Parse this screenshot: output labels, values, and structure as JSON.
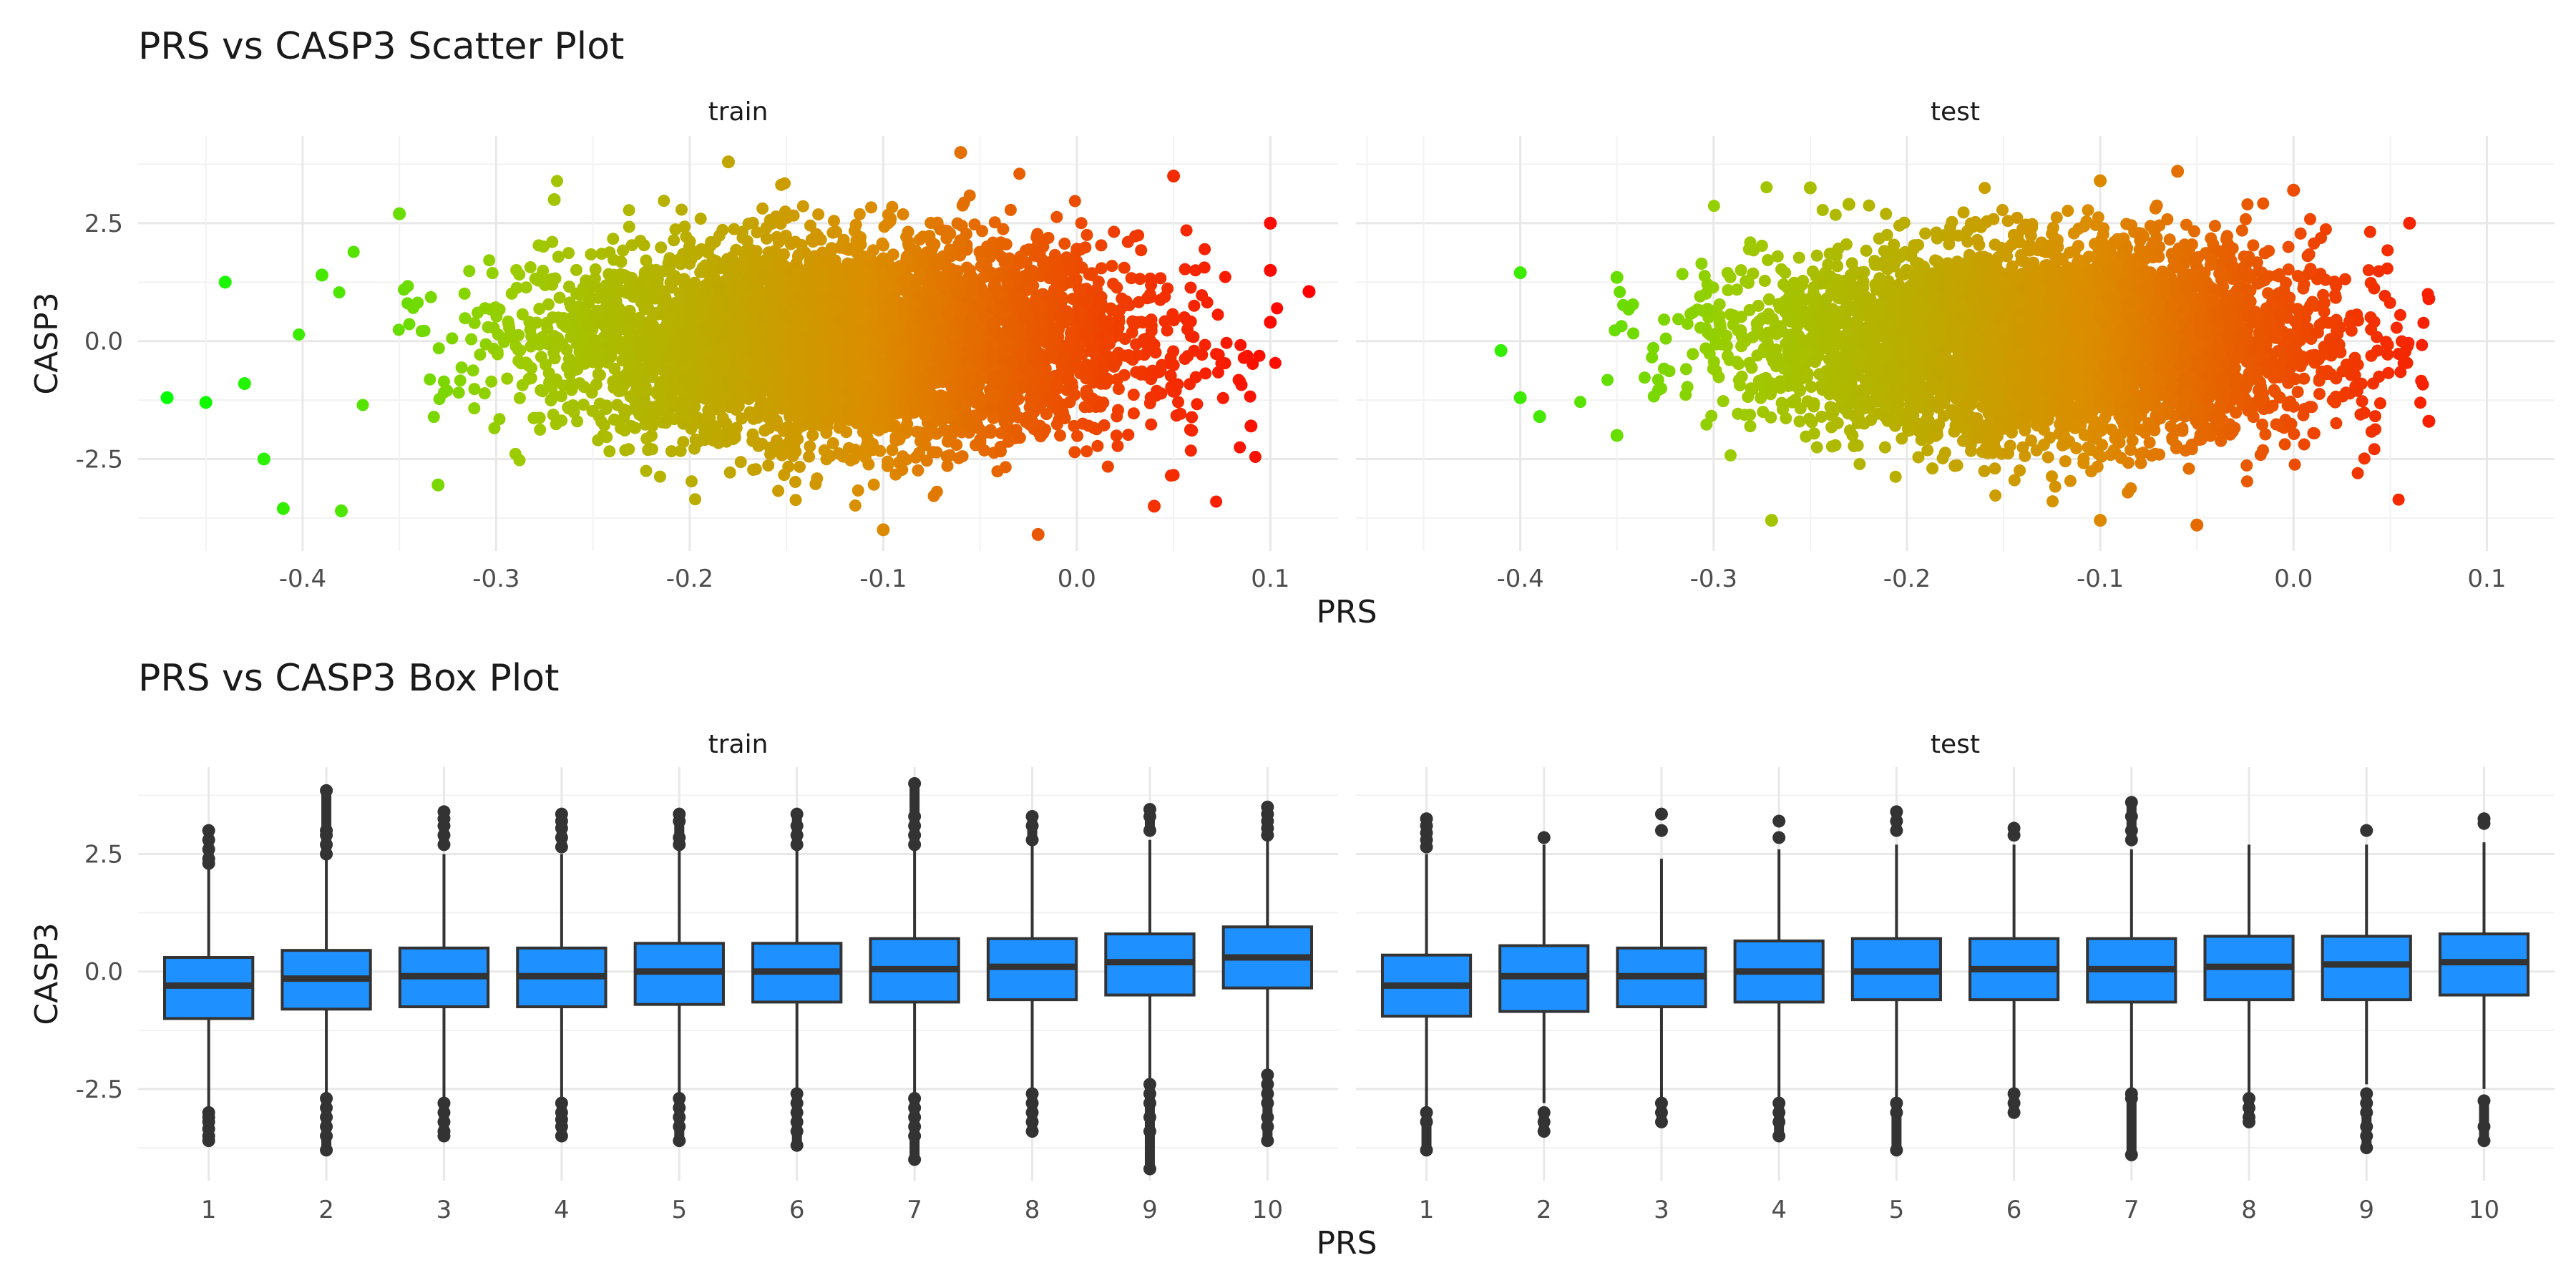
{
  "chart_data": [
    {
      "type": "scatter",
      "title": "PRS vs CASP3 Scatter Plot",
      "xlabel": "PRS",
      "ylabel": "CASP3",
      "grid": true,
      "color_scale": {
        "low": "#00FF00",
        "mid": "#9ACD00",
        "high": "#FF0000"
      },
      "panels": [
        {
          "name": "train",
          "xlim": [
            -0.485,
            0.135
          ],
          "ylim": [
            -4.45,
            4.35
          ],
          "x_ticks": [
            -0.4,
            -0.3,
            -0.2,
            -0.1,
            0.0,
            0.1
          ],
          "x_tick_labels": [
            "-0.4",
            "-0.3",
            "-0.2",
            "-0.1",
            "0.0",
            "0.1"
          ],
          "y_ticks": [
            -2.5,
            0.0,
            2.5
          ],
          "y_tick_labels": [
            "-2.5",
            "0.0",
            "2.5"
          ],
          "density": {
            "x_center": -0.12,
            "x_sd": 0.075,
            "y_center": 0.0,
            "y_sd": 1.0,
            "x_range": [
              -0.47,
              0.12
            ],
            "y_range": [
              -4.25,
              4.0
            ]
          },
          "points": [
            {
              "x": -0.47,
              "y": -1.2
            },
            {
              "x": -0.45,
              "y": -1.3
            },
            {
              "x": -0.44,
              "y": 1.25
            },
            {
              "x": -0.43,
              "y": -0.9
            },
            {
              "x": -0.42,
              "y": -2.5
            },
            {
              "x": -0.41,
              "y": -3.55
            },
            {
              "x": -0.39,
              "y": 1.4
            },
            {
              "x": -0.38,
              "y": -3.6
            },
            {
              "x": -0.35,
              "y": 2.7
            },
            {
              "x": -0.33,
              "y": -3.05
            },
            {
              "x": -0.27,
              "y": 3.0
            },
            {
              "x": -0.18,
              "y": 3.8
            },
            {
              "x": -0.06,
              "y": 4.0
            },
            {
              "x": -0.1,
              "y": -4.0
            },
            {
              "x": -0.02,
              "y": -4.1
            },
            {
              "x": 0.05,
              "y": 3.5
            },
            {
              "x": 0.1,
              "y": 2.5
            },
            {
              "x": 0.1,
              "y": 1.5
            },
            {
              "x": 0.12,
              "y": 1.05
            },
            {
              "x": 0.1,
              "y": 0.4
            },
            {
              "x": 0.09,
              "y": -1.8
            },
            {
              "x": 0.04,
              "y": -3.5
            }
          ]
        },
        {
          "name": "test",
          "xlim": [
            -0.485,
            0.135
          ],
          "ylim": [
            -4.45,
            4.35
          ],
          "x_ticks": [
            -0.4,
            -0.3,
            -0.2,
            -0.1,
            0.0,
            0.1
          ],
          "x_tick_labels": [
            "-0.4",
            "-0.3",
            "-0.2",
            "-0.1",
            "0.0",
            "0.1"
          ],
          "y_ticks": [
            -2.5,
            0.0,
            2.5
          ],
          "y_tick_labels": [
            "-2.5",
            "0.0",
            "2.5"
          ],
          "density": {
            "x_center": -0.13,
            "x_sd": 0.072,
            "y_center": 0.0,
            "y_sd": 0.98,
            "x_range": [
              -0.41,
              0.08
            ],
            "y_range": [
              -3.9,
              3.7
            ]
          },
          "points": [
            {
              "x": -0.41,
              "y": -0.2
            },
            {
              "x": -0.4,
              "y": 1.45
            },
            {
              "x": -0.4,
              "y": -1.2
            },
            {
              "x": -0.39,
              "y": -1.6
            },
            {
              "x": -0.35,
              "y": 1.35
            },
            {
              "x": -0.35,
              "y": -2.0
            },
            {
              "x": -0.27,
              "y": -3.8
            },
            {
              "x": -0.25,
              "y": 3.25
            },
            {
              "x": -0.23,
              "y": 2.9
            },
            {
              "x": -0.1,
              "y": 3.4
            },
            {
              "x": -0.06,
              "y": 3.6
            },
            {
              "x": 0.0,
              "y": 3.2
            },
            {
              "x": -0.1,
              "y": -3.8
            },
            {
              "x": -0.05,
              "y": -3.9
            },
            {
              "x": 0.07,
              "y": 0.9
            },
            {
              "x": 0.07,
              "y": -1.7
            },
            {
              "x": 0.06,
              "y": 2.5
            }
          ]
        }
      ]
    },
    {
      "type": "box",
      "title": "PRS vs CASP3 Box Plot",
      "xlabel": "PRS",
      "ylabel": "CASP3",
      "grid": true,
      "box_color": "#1E90FF",
      "line_color": "#333333",
      "categories": [
        "1",
        "2",
        "3",
        "4",
        "5",
        "6",
        "7",
        "8",
        "9",
        "10"
      ],
      "panels": [
        {
          "name": "train",
          "ylim": [
            -4.45,
            4.35
          ],
          "y_ticks": [
            -2.5,
            0.0,
            2.5
          ],
          "y_tick_labels": [
            "-2.5",
            "0.0",
            "2.5"
          ],
          "boxes": [
            {
              "min": -2.9,
              "q1": -1.0,
              "median": -0.3,
              "q3": 0.3,
              "max": 2.2,
              "outliers": [
                3.0,
                2.8,
                2.6,
                2.4,
                2.3,
                -3.0,
                -3.1,
                -3.2,
                -3.35,
                -3.5,
                -3.6
              ]
            },
            {
              "min": -2.6,
              "q1": -0.8,
              "median": -0.15,
              "q3": 0.45,
              "max": 2.4,
              "outliers": [
                3.85,
                3.0,
                2.9,
                2.7,
                2.5,
                -2.7,
                -2.9,
                -3.1,
                -3.3,
                -3.5,
                -3.8
              ]
            },
            {
              "min": -2.7,
              "q1": -0.75,
              "median": -0.1,
              "q3": 0.5,
              "max": 2.5,
              "outliers": [
                3.4,
                3.25,
                3.1,
                2.9,
                2.7,
                -2.8,
                -3.0,
                -3.2,
                -3.4,
                -3.5
              ]
            },
            {
              "min": -2.7,
              "q1": -0.75,
              "median": -0.1,
              "q3": 0.5,
              "max": 2.5,
              "outliers": [
                3.35,
                3.2,
                3.05,
                2.85,
                2.65,
                -2.8,
                -3.0,
                -3.15,
                -3.3,
                -3.5
              ]
            },
            {
              "min": -2.6,
              "q1": -0.7,
              "median": 0.0,
              "q3": 0.6,
              "max": 2.6,
              "outliers": [
                3.35,
                3.2,
                2.85,
                2.7,
                -2.7,
                -2.9,
                -3.1,
                -3.3,
                -3.6
              ]
            },
            {
              "min": -2.6,
              "q1": -0.65,
              "median": 0.0,
              "q3": 0.6,
              "max": 2.6,
              "outliers": [
                3.35,
                3.1,
                2.9,
                2.7,
                -2.6,
                -2.8,
                -3.0,
                -3.2,
                -3.4,
                -3.7
              ]
            },
            {
              "min": -2.6,
              "q1": -0.65,
              "median": 0.05,
              "q3": 0.7,
              "max": 2.6,
              "outliers": [
                4.0,
                3.3,
                3.1,
                2.9,
                2.7,
                -2.7,
                -2.9,
                -3.1,
                -3.3,
                -3.5,
                -4.0
              ]
            },
            {
              "min": -2.5,
              "q1": -0.6,
              "median": 0.1,
              "q3": 0.7,
              "max": 2.7,
              "outliers": [
                3.3,
                3.1,
                2.8,
                -2.6,
                -2.8,
                -3.0,
                -3.2,
                -3.4
              ]
            },
            {
              "min": -2.3,
              "q1": -0.5,
              "median": 0.2,
              "q3": 0.8,
              "max": 2.8,
              "outliers": [
                3.45,
                3.3,
                3.0,
                -2.4,
                -2.6,
                -2.8,
                -3.1,
                -3.4,
                -4.2
              ]
            },
            {
              "min": -2.2,
              "q1": -0.35,
              "median": 0.3,
              "q3": 0.95,
              "max": 2.8,
              "outliers": [
                3.5,
                3.35,
                3.2,
                3.05,
                2.9,
                -2.2,
                -2.4,
                -2.6,
                -2.8,
                -3.1,
                -3.3,
                -3.6
              ]
            }
          ]
        },
        {
          "name": "test",
          "ylim": [
            -4.45,
            4.35
          ],
          "y_ticks": [
            -2.5,
            0.0,
            2.5
          ],
          "y_tick_labels": [
            "-2.5",
            "0.0",
            "2.5"
          ],
          "boxes": [
            {
              "min": -2.9,
              "q1": -0.95,
              "median": -0.3,
              "q3": 0.35,
              "max": 2.5,
              "outliers": [
                3.25,
                3.1,
                2.95,
                2.8,
                2.65,
                -3.0,
                -3.2,
                -3.8
              ]
            },
            {
              "min": -2.8,
              "q1": -0.85,
              "median": -0.1,
              "q3": 0.55,
              "max": 2.7,
              "outliers": [
                2.85,
                -3.0,
                -3.2,
                -3.4
              ]
            },
            {
              "min": -2.7,
              "q1": -0.75,
              "median": -0.1,
              "q3": 0.5,
              "max": 2.4,
              "outliers": [
                3.35,
                3.0,
                -2.8,
                -3.0,
                -3.2
              ]
            },
            {
              "min": -2.7,
              "q1": -0.65,
              "median": 0.0,
              "q3": 0.65,
              "max": 2.6,
              "outliers": [
                3.2,
                2.85,
                -2.8,
                -3.0,
                -3.2,
                -3.5
              ]
            },
            {
              "min": -2.7,
              "q1": -0.6,
              "median": 0.0,
              "q3": 0.7,
              "max": 2.7,
              "outliers": [
                3.4,
                3.2,
                3.0,
                -2.8,
                -3.0,
                -3.8
              ]
            },
            {
              "min": -2.5,
              "q1": -0.6,
              "median": 0.05,
              "q3": 0.7,
              "max": 2.7,
              "outliers": [
                3.05,
                2.9,
                -2.6,
                -2.8,
                -3.0
              ]
            },
            {
              "min": -2.6,
              "q1": -0.65,
              "median": 0.05,
              "q3": 0.7,
              "max": 2.6,
              "outliers": [
                3.6,
                3.3,
                3.0,
                2.8,
                -2.6,
                -2.7,
                -3.9
              ]
            },
            {
              "min": -2.6,
              "q1": -0.6,
              "median": 0.1,
              "q3": 0.75,
              "max": 2.7,
              "outliers": [
                -2.7,
                -2.9,
                -3.1,
                -3.2
              ]
            },
            {
              "min": -2.4,
              "q1": -0.6,
              "median": 0.15,
              "q3": 0.75,
              "max": 2.7,
              "outliers": [
                3.0,
                -2.6,
                -2.8,
                -3.0,
                -3.3,
                -3.5,
                -3.75
              ]
            },
            {
              "min": -2.5,
              "q1": -0.5,
              "median": 0.2,
              "q3": 0.8,
              "max": 2.75,
              "outliers": [
                3.25,
                3.15,
                -2.75,
                -3.3,
                -3.6
              ]
            }
          ]
        }
      ]
    }
  ]
}
